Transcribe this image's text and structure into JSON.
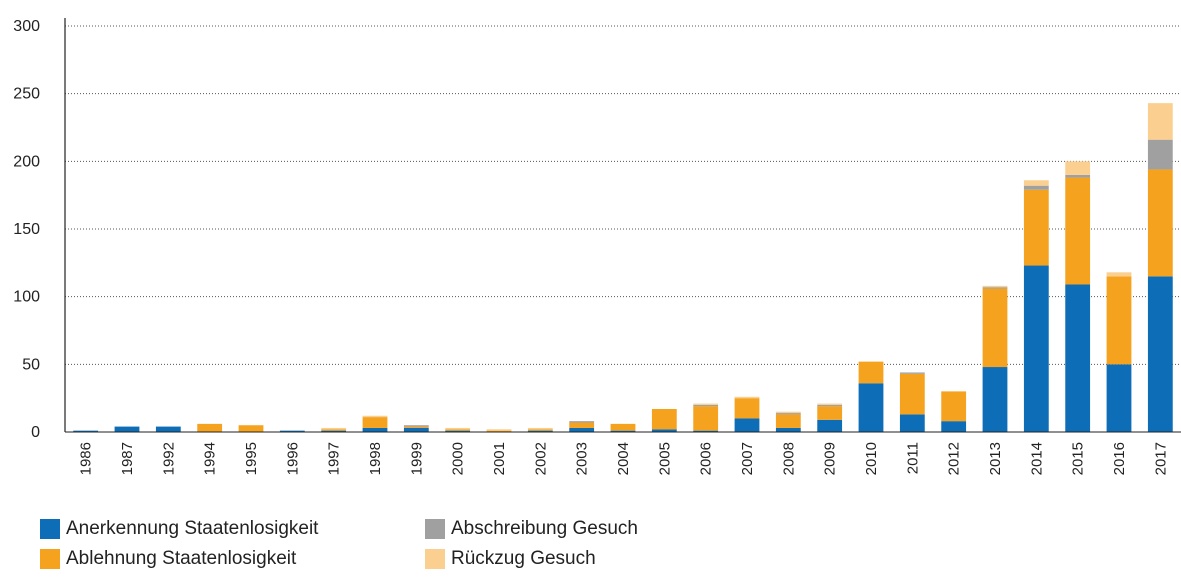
{
  "chart_data": {
    "type": "stacked_bar",
    "categories": [
      "1986",
      "1987",
      "1992",
      "1994",
      "1995",
      "1996",
      "1997",
      "1998",
      "1999",
      "2000",
      "2001",
      "2002",
      "2003",
      "2004",
      "2005",
      "2006",
      "2007",
      "2008",
      "2009",
      "2010",
      "2011",
      "2012",
      "2013",
      "2014",
      "2015",
      "2016",
      "2017"
    ],
    "series": [
      {
        "name": "Anerkennung Staatenlosigkeit",
        "color": "#0d6db7",
        "values": [
          1,
          4,
          4,
          0,
          0,
          1,
          1,
          3,
          3,
          1,
          0,
          1,
          3,
          1,
          2,
          1,
          10,
          3,
          9,
          36,
          13,
          8,
          48,
          123,
          109,
          50,
          115
        ]
      },
      {
        "name": "Ablehnung Staatenlosigkeit",
        "color": "#f5a21f",
        "values": [
          0,
          0,
          0,
          6,
          5,
          0,
          1,
          8,
          1,
          1,
          1,
          1,
          4,
          5,
          15,
          18,
          15,
          10,
          10,
          16,
          30,
          22,
          58,
          56,
          79,
          65,
          79
        ]
      },
      {
        "name": "Abschreibung Gesuch",
        "color": "#a0a0a0",
        "values": [
          0,
          0,
          0,
          0,
          0,
          0,
          0,
          0,
          1,
          0,
          0,
          0,
          1,
          0,
          0,
          1,
          0,
          1,
          1,
          0,
          1,
          0,
          1,
          3,
          2,
          0,
          22
        ]
      },
      {
        "name": "Rückzug Gesuch",
        "color": "#fbcf8f",
        "values": [
          0,
          0,
          0,
          0,
          0,
          0,
          1,
          1,
          0,
          1,
          1,
          1,
          0,
          0,
          0,
          1,
          1,
          1,
          1,
          0,
          0,
          0,
          1,
          4,
          10,
          3,
          27
        ]
      }
    ],
    "ylim": [
      0,
      300
    ],
    "yticks": [
      0,
      50,
      100,
      150,
      200,
      250,
      300
    ],
    "grid": true
  }
}
